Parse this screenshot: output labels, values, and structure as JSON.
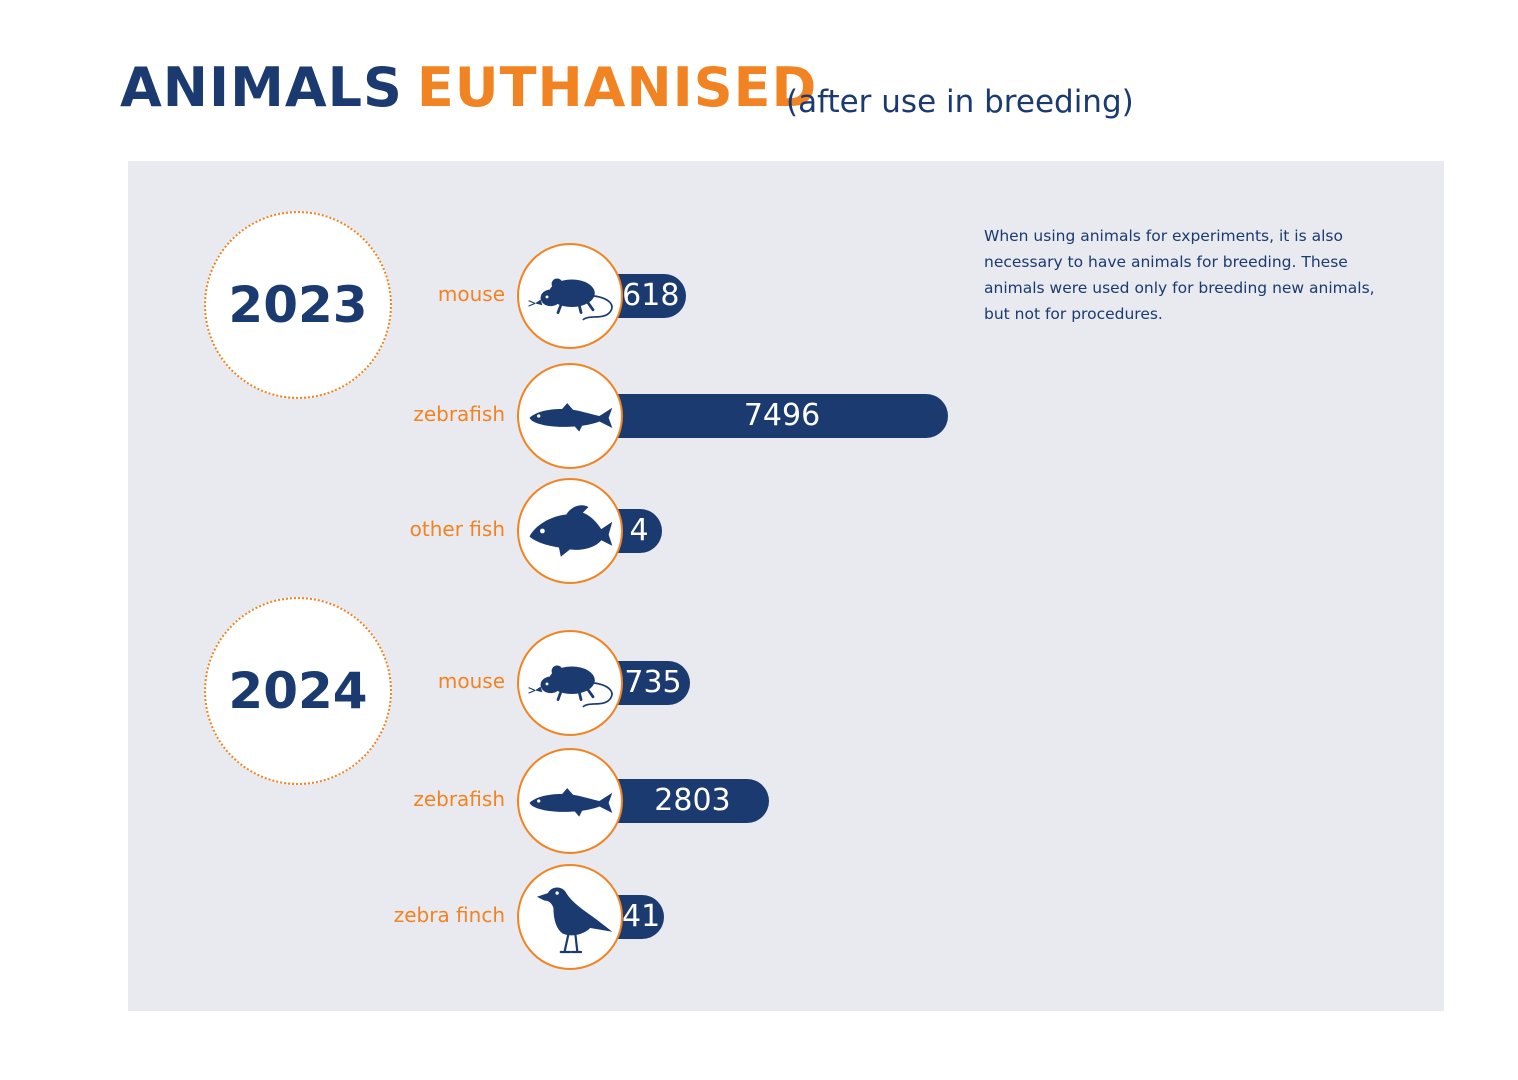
{
  "title": {
    "main": "ANIMALS",
    "accent": "EUTHANISED",
    "subtitle": "(after use in breeding)"
  },
  "note": "When using animals for experiments, it is also necessary to have animals for breeding. These animals were used only for breeding new animals, but not for procedures.",
  "colors": {
    "primary": "#1b3a70",
    "accent": "#f28322",
    "panel": "#e8eaef"
  },
  "chart_data": {
    "type": "bar",
    "orientation": "horizontal",
    "groups": [
      {
        "year": "2023",
        "items": [
          {
            "label": "mouse",
            "value": 618,
            "icon": "mouse-icon"
          },
          {
            "label": "zebrafish",
            "value": 7496,
            "icon": "zebrafish-icon"
          },
          {
            "label": "other fish",
            "value": 4,
            "icon": "other-fish-icon"
          }
        ]
      },
      {
        "year": "2024",
        "items": [
          {
            "label": "mouse",
            "value": 735,
            "icon": "mouse-icon"
          },
          {
            "label": "zebrafish",
            "value": 2803,
            "icon": "zebrafish-icon"
          },
          {
            "label": "zebra finch",
            "value": 41,
            "icon": "zebra-finch-icon"
          }
        ]
      }
    ]
  }
}
